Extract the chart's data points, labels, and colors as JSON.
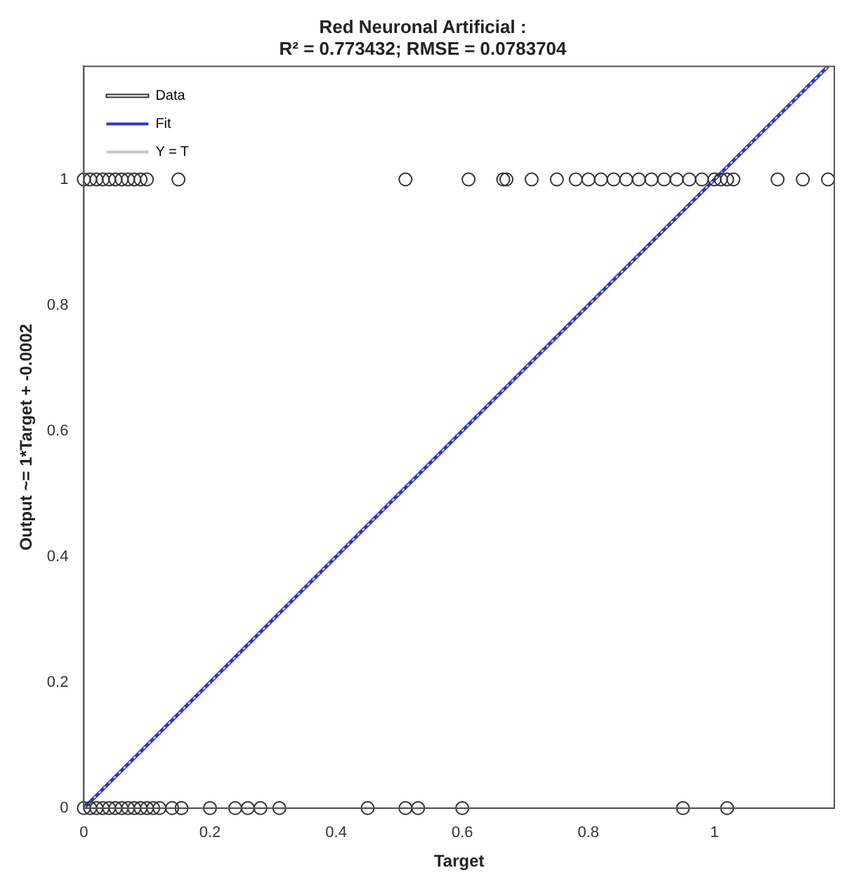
{
  "chart_data": {
    "type": "scatter",
    "title": "Red Neuronal Artificial :",
    "subtitle": "R² = 0.773432; RMSE = 0.0783704",
    "xlabel": "Target",
    "ylabel": "Output ~= 1*Target + -0.0002",
    "xlim": [
      0,
      1.19
    ],
    "ylim": [
      0,
      1.18
    ],
    "xticks": [
      0,
      0.2,
      0.4,
      0.6,
      0.8,
      1
    ],
    "yticks": [
      0,
      0.2,
      0.4,
      0.6,
      0.8,
      1
    ],
    "grid": false,
    "legend": "top left",
    "series": [
      {
        "name": "Data",
        "type": "scatter",
        "marker": "circle",
        "color": "#333333",
        "x": [
          0,
          0.01,
          0.02,
          0.03,
          0.04,
          0.05,
          0.06,
          0.07,
          0.08,
          0.09,
          0.1,
          0.15,
          0.51,
          0.61,
          0.665,
          0.67,
          0.71,
          0.75,
          0.78,
          0.8,
          0.82,
          0.84,
          0.86,
          0.88,
          0.9,
          0.92,
          0.94,
          0.96,
          0.98,
          1,
          1.01,
          1.02,
          1.03,
          1.1,
          1.14,
          1.18,
          0,
          0.01,
          0.02,
          0.03,
          0.04,
          0.05,
          0.06,
          0.07,
          0.08,
          0.09,
          0.1,
          0.11,
          0.12,
          0.14,
          0.155,
          0.2,
          0.24,
          0.26,
          0.28,
          0.31,
          0.45,
          0.51,
          0.53,
          0.6,
          0.95,
          1.02
        ],
        "values": [
          1,
          1,
          1,
          1,
          1,
          1,
          1,
          1,
          1,
          1,
          1,
          1,
          1,
          1,
          1,
          1,
          1,
          1,
          1,
          1,
          1,
          1,
          1,
          1,
          1,
          1,
          1,
          1,
          1,
          1,
          1,
          1,
          1,
          1,
          1,
          1,
          0,
          0,
          0,
          0,
          0,
          0,
          0,
          0,
          0,
          0,
          0,
          0,
          0,
          0,
          0,
          0,
          0,
          0,
          0,
          0,
          0,
          0,
          0,
          0,
          0,
          0
        ]
      },
      {
        "name": "Fit",
        "type": "line",
        "marker": "none",
        "line_style": "solid",
        "color": "#2b35c8",
        "x": [
          0,
          1.18
        ],
        "values": [
          0,
          1.18
        ]
      },
      {
        "name": "Y = T",
        "type": "line",
        "marker": "none",
        "line_style": "dotted",
        "color": "#c8c8c8",
        "x": [
          0,
          1.18
        ],
        "values": [
          0,
          1.18
        ]
      }
    ]
  }
}
